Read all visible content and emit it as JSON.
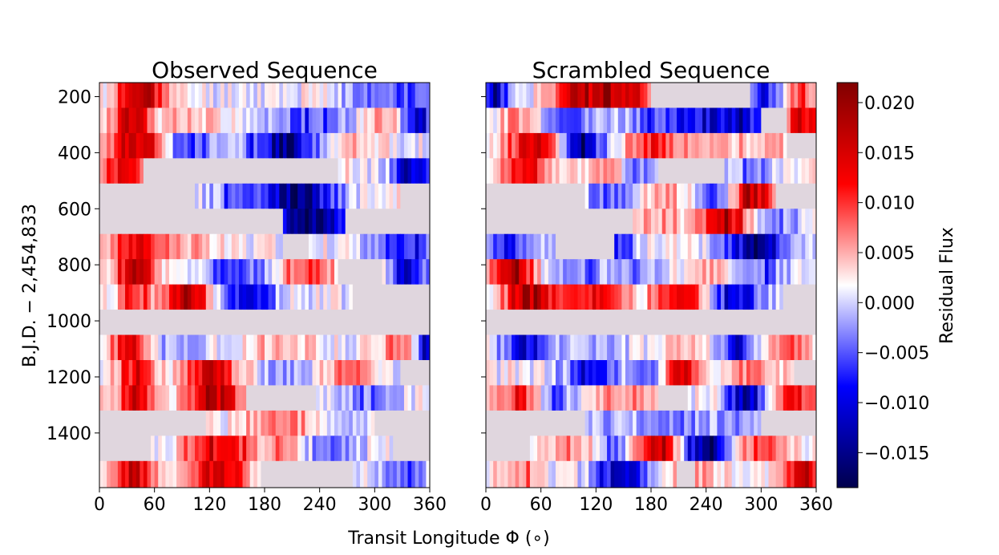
{
  "chart_data": {
    "type": "heatmap",
    "xlabel": "Transit Longitude Φ (∘)",
    "ylabel": "B.J.D. − 2,454,833",
    "x_range": [
      0,
      360
    ],
    "y_range": [
      150,
      1595
    ],
    "xticks": [
      "0",
      "60",
      "120",
      "180",
      "240",
      "300",
      "360"
    ],
    "xtick_values": [
      0,
      60,
      120,
      180,
      240,
      300,
      360
    ],
    "yticks": [
      "200",
      "400",
      "600",
      "800",
      "1000",
      "1200",
      "1400"
    ],
    "ytick_values": [
      200,
      400,
      600,
      800,
      1000,
      1200,
      1400
    ],
    "row_edges": [
      150,
      240,
      330,
      420,
      510,
      600,
      690,
      780,
      870,
      960,
      1050,
      1140,
      1230,
      1320,
      1410,
      1500,
      1595
    ],
    "panels": [
      {
        "title": "Observed Sequence",
        "rows": [
          {
            "seed": 11,
            "gaps": [],
            "blobs": [
              [
                40,
                14,
                0.017
              ],
              [
                62,
                10,
                0.008
              ],
              [
                300,
                25,
                -0.006
              ],
              [
                340,
                12,
                -0.004
              ]
            ]
          },
          {
            "seed": 12,
            "gaps": [],
            "blobs": [
              [
                35,
                15,
                0.014
              ],
              [
                100,
                20,
                0.004
              ],
              [
                230,
                30,
                -0.007
              ],
              [
                310,
                18,
                0.005
              ],
              [
                345,
                12,
                -0.012
              ]
            ]
          },
          {
            "seed": 13,
            "gaps": [],
            "blobs": [
              [
                40,
                20,
                0.018
              ],
              [
                100,
                25,
                -0.006
              ],
              [
                200,
                25,
                -0.014
              ],
              [
                280,
                20,
                0.004
              ]
            ]
          },
          {
            "seed": 14,
            "gaps": [
              [
                50,
                260
              ]
            ],
            "blobs": [
              [
                30,
                20,
                0.012
              ],
              [
                95,
                15,
                -0.006
              ],
              [
                340,
                15,
                -0.013
              ]
            ]
          },
          {
            "seed": 15,
            "gaps": [
              [
                0,
                105
              ],
              [
                330,
                360
              ]
            ],
            "blobs": [
              [
                215,
                30,
                -0.016
              ],
              [
                150,
                25,
                -0.005
              ]
            ]
          },
          {
            "seed": 16,
            "gaps": [
              [
                0,
                200
              ],
              [
                270,
                360
              ]
            ],
            "blobs": [
              [
                235,
                25,
                -0.018
              ]
            ]
          },
          {
            "seed": 17,
            "gaps": [
              [
                200,
                230
              ]
            ],
            "blobs": [
              [
                40,
                20,
                0.014
              ],
              [
                90,
                20,
                0.004
              ],
              [
                330,
                25,
                -0.009
              ]
            ]
          },
          {
            "seed": 18,
            "gaps": [
              [
                260,
                310
              ]
            ],
            "blobs": [
              [
                40,
                15,
                0.017
              ],
              [
                150,
                25,
                -0.008
              ],
              [
                225,
                25,
                0.008
              ],
              [
                340,
                15,
                -0.011
              ]
            ]
          },
          {
            "seed": 19,
            "gaps": [
              [
                275,
                360
              ]
            ],
            "blobs": [
              [
                40,
                12,
                0.011
              ],
              [
                95,
                18,
                0.016
              ],
              [
                160,
                20,
                -0.013
              ]
            ]
          },
          {
            "seed": 20,
            "gaps": [
              [
                0,
                360
              ]
            ],
            "blobs": []
          },
          {
            "seed": 21,
            "gaps": [],
            "blobs": [
              [
                35,
                15,
                0.013
              ],
              [
                80,
                25,
                -0.004
              ],
              [
                200,
                30,
                0.003
              ],
              [
                330,
                20,
                0.006
              ],
              [
                355,
                8,
                -0.014
              ]
            ]
          },
          {
            "seed": 22,
            "gaps": [
              [
                330,
                360
              ]
            ],
            "blobs": [
              [
                40,
                15,
                0.013
              ],
              [
                120,
                20,
                0.016
              ],
              [
                200,
                20,
                -0.004
              ],
              [
                270,
                20,
                0.006
              ]
            ]
          },
          {
            "seed": 23,
            "gaps": [
              [
                160,
                235
              ]
            ],
            "blobs": [
              [
                40,
                15,
                0.013
              ],
              [
                125,
                20,
                0.017
              ],
              [
                290,
                25,
                -0.005
              ]
            ]
          },
          {
            "seed": 24,
            "gaps": [
              [
                0,
                115
              ],
              [
                300,
                360
              ]
            ],
            "blobs": [
              [
                195,
                25,
                0.007
              ],
              [
                270,
                25,
                -0.003
              ]
            ]
          },
          {
            "seed": 25,
            "gaps": [
              [
                0,
                55
              ],
              [
                320,
                360
              ]
            ],
            "blobs": [
              [
                130,
                25,
                0.014
              ],
              [
                200,
                20,
                0.004
              ],
              [
                250,
                20,
                -0.005
              ]
            ]
          },
          {
            "seed": 26,
            "gaps": [
              [
                175,
                275
              ]
            ],
            "blobs": [
              [
                35,
                15,
                0.016
              ],
              [
                130,
                20,
                0.017
              ],
              [
                330,
                20,
                -0.006
              ]
            ]
          }
        ]
      },
      {
        "title": "Scrambled Sequence",
        "rows": [
          {
            "seed": 31,
            "gaps": [
              [
                180,
                290
              ]
            ],
            "blobs": [
              [
                10,
                12,
                -0.012
              ],
              [
                100,
                20,
                0.014
              ],
              [
                145,
                20,
                0.018
              ],
              [
                305,
                20,
                -0.009
              ],
              [
                340,
                15,
                0.011
              ]
            ]
          },
          {
            "seed": 32,
            "gaps": [
              [
                300,
                330
              ]
            ],
            "blobs": [
              [
                40,
                15,
                0.006
              ],
              [
                90,
                25,
                -0.006
              ],
              [
                200,
                30,
                -0.008
              ],
              [
                270,
                25,
                -0.012
              ],
              [
                345,
                15,
                0.014
              ]
            ]
          },
          {
            "seed": 33,
            "gaps": [
              [
                330,
                360
              ]
            ],
            "blobs": [
              [
                50,
                20,
                0.014
              ],
              [
                105,
                15,
                -0.015
              ],
              [
                180,
                20,
                0.008
              ],
              [
                240,
                25,
                0.005
              ],
              [
                310,
                20,
                0.004
              ]
            ]
          },
          {
            "seed": 34,
            "gaps": [
              [
                190,
                260
              ]
            ],
            "blobs": [
              [
                40,
                20,
                0.013
              ],
              [
                130,
                20,
                0.005
              ],
              [
                170,
                18,
                -0.006
              ],
              [
                285,
                20,
                -0.004
              ]
            ]
          },
          {
            "seed": 35,
            "gaps": [
              [
                0,
                110
              ],
              [
                315,
                360
              ]
            ],
            "blobs": [
              [
                135,
                20,
                -0.006
              ],
              [
                195,
                20,
                0.004
              ],
              [
                255,
                15,
                -0.006
              ],
              [
                290,
                15,
                0.016
              ]
            ]
          },
          {
            "seed": 36,
            "gaps": [
              [
                0,
                160
              ]
            ],
            "blobs": [
              [
                190,
                20,
                0.004
              ],
              [
                260,
                18,
                0.016
              ],
              [
                320,
                25,
                -0.004
              ]
            ]
          },
          {
            "seed": 37,
            "gaps": [
              [
                75,
                140
              ]
            ],
            "blobs": [
              [
                20,
                15,
                -0.007
              ],
              [
                50,
                18,
                -0.004
              ],
              [
                140,
                15,
                -0.009
              ],
              [
                295,
                25,
                -0.015
              ]
            ]
          },
          {
            "seed": 38,
            "gaps": [],
            "blobs": [
              [
                30,
                15,
                0.018
              ],
              [
                100,
                25,
                -0.005
              ],
              [
                170,
                25,
                -0.004
              ],
              [
                240,
                25,
                0.004
              ],
              [
                300,
                20,
                -0.006
              ]
            ]
          },
          {
            "seed": 39,
            "gaps": [
              [
                325,
                360
              ]
            ],
            "blobs": [
              [
                50,
                20,
                0.018
              ],
              [
                120,
                20,
                0.011
              ],
              [
                210,
                20,
                0.014
              ],
              [
                275,
                18,
                -0.013
              ]
            ]
          },
          {
            "seed": 40,
            "gaps": [
              [
                0,
                360
              ]
            ],
            "blobs": []
          },
          {
            "seed": 41,
            "gaps": [],
            "blobs": [
              [
                45,
                20,
                -0.011
              ],
              [
                130,
                25,
                -0.003
              ],
              [
                210,
                20,
                0.003
              ],
              [
                275,
                15,
                -0.01
              ],
              [
                330,
                20,
                0.007
              ]
            ]
          },
          {
            "seed": 42,
            "gaps": [
              [
                335,
                360
              ]
            ],
            "blobs": [
              [
                115,
                20,
                -0.01
              ],
              [
                185,
                18,
                -0.008
              ],
              [
                210,
                15,
                0.016
              ],
              [
                290,
                20,
                0.006
              ]
            ]
          },
          {
            "seed": 43,
            "gaps": [
              [
                190,
                220
              ]
            ],
            "blobs": [
              [
                45,
                20,
                0.012
              ],
              [
                70,
                15,
                -0.011
              ],
              [
                160,
                25,
                0.006
              ],
              [
                285,
                15,
                -0.015
              ],
              [
                340,
                20,
                0.01
              ]
            ]
          },
          {
            "seed": 44,
            "gaps": [
              [
                0,
                110
              ],
              [
                300,
                360
              ]
            ],
            "blobs": [
              [
                140,
                25,
                -0.004
              ],
              [
                210,
                25,
                -0.005
              ],
              [
                270,
                20,
                -0.003
              ]
            ]
          },
          {
            "seed": 45,
            "gaps": [
              [
                0,
                50
              ]
            ],
            "blobs": [
              [
                90,
                20,
                0.004
              ],
              [
                150,
                20,
                -0.006
              ],
              [
                185,
                18,
                0.018
              ],
              [
                240,
                20,
                -0.016
              ],
              [
                300,
                20,
                0.009
              ]
            ]
          },
          {
            "seed": 46,
            "gaps": [
              [
                210,
                230
              ]
            ],
            "blobs": [
              [
                40,
                15,
                0.006
              ],
              [
                150,
                20,
                -0.014
              ],
              [
                230,
                20,
                0.004
              ],
              [
                345,
                15,
                0.016
              ]
            ]
          }
        ]
      }
    ],
    "colorbar": {
      "label": "Residual Flux",
      "vmin": -0.0185,
      "vmax": 0.022,
      "ticks": [
        "−0.015",
        "−0.010",
        "−0.005",
        "0.000",
        "0.005",
        "0.010",
        "0.015",
        "0.020"
      ],
      "tick_values": [
        -0.015,
        -0.01,
        -0.005,
        0,
        0.005,
        0.01,
        0.015,
        0.02
      ],
      "colormap": "seismic"
    },
    "gap_color": "#e0d6de"
  }
}
